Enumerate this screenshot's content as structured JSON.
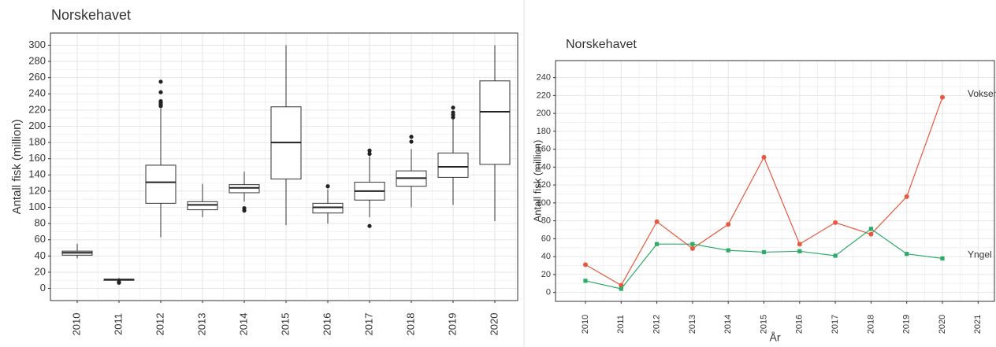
{
  "chart_data": [
    {
      "type": "box",
      "title": "Norskehavet",
      "y_label": "Antall fisk (million)",
      "categories": [
        "2010",
        "2011",
        "2012",
        "2013",
        "2014",
        "2015",
        "2016",
        "2017",
        "2018",
        "2019",
        "2020"
      ],
      "boxes": [
        {
          "min": 37,
          "q1": 41,
          "median": 44,
          "q3": 46,
          "max": 55,
          "outliers": []
        },
        {
          "min": 10,
          "q1": 10,
          "median": 11,
          "q3": 11,
          "max": 13,
          "outliers": [
            7,
            8
          ]
        },
        {
          "min": 63,
          "q1": 105,
          "median": 131,
          "q3": 152,
          "max": 222,
          "outliers": [
            225,
            227,
            229,
            231,
            242,
            255
          ]
        },
        {
          "min": 88,
          "q1": 97,
          "median": 103,
          "q3": 107,
          "max": 129,
          "outliers": []
        },
        {
          "min": 107,
          "q1": 118,
          "median": 124,
          "q3": 128,
          "max": 144,
          "outliers": [
            96,
            99
          ]
        },
        {
          "min": 78,
          "q1": 135,
          "median": 180,
          "q3": 224,
          "max": 300,
          "outliers": []
        },
        {
          "min": 80,
          "q1": 93,
          "median": 100,
          "q3": 105,
          "max": 122,
          "outliers": [
            126
          ]
        },
        {
          "min": 88,
          "q1": 109,
          "median": 120,
          "q3": 131,
          "max": 163,
          "outliers": [
            77,
            166,
            170
          ]
        },
        {
          "min": 100,
          "q1": 126,
          "median": 136,
          "q3": 145,
          "max": 172,
          "outliers": [
            181,
            187
          ]
        },
        {
          "min": 103,
          "q1": 137,
          "median": 150,
          "q3": 167,
          "max": 209,
          "outliers": [
            211,
            214,
            217,
            223
          ]
        },
        {
          "min": 83,
          "q1": 153,
          "median": 218,
          "q3": 256,
          "max": 300,
          "outliers": []
        }
      ],
      "ylim": [
        -15,
        315
      ],
      "yticks": [
        0,
        20,
        40,
        60,
        80,
        100,
        120,
        140,
        160,
        180,
        200,
        220,
        240,
        260,
        280,
        300
      ],
      "grid": true
    },
    {
      "type": "line",
      "title": "Norskehavet",
      "y_label": "Antall fisk (million)",
      "x_label": "År",
      "categories": [
        "2010",
        "2011",
        "2012",
        "2013",
        "2014",
        "2015",
        "2016",
        "2017",
        "2018",
        "2019",
        "2020",
        "2021"
      ],
      "series": [
        {
          "name": "Voksen",
          "color": "#e8583f",
          "values": [
            31,
            8,
            79,
            49,
            76,
            151,
            54,
            78,
            65,
            107,
            218,
            null
          ]
        },
        {
          "name": "Yngel",
          "color": "#2eaa6a",
          "values": [
            13,
            4,
            54,
            54,
            47,
            45,
            46,
            41,
            71,
            43,
            38,
            null
          ]
        }
      ],
      "ylim": [
        -10,
        259
      ],
      "yticks": [
        0,
        20,
        40,
        60,
        80,
        100,
        120,
        140,
        160,
        180,
        200,
        220,
        240
      ],
      "grid": true
    }
  ]
}
